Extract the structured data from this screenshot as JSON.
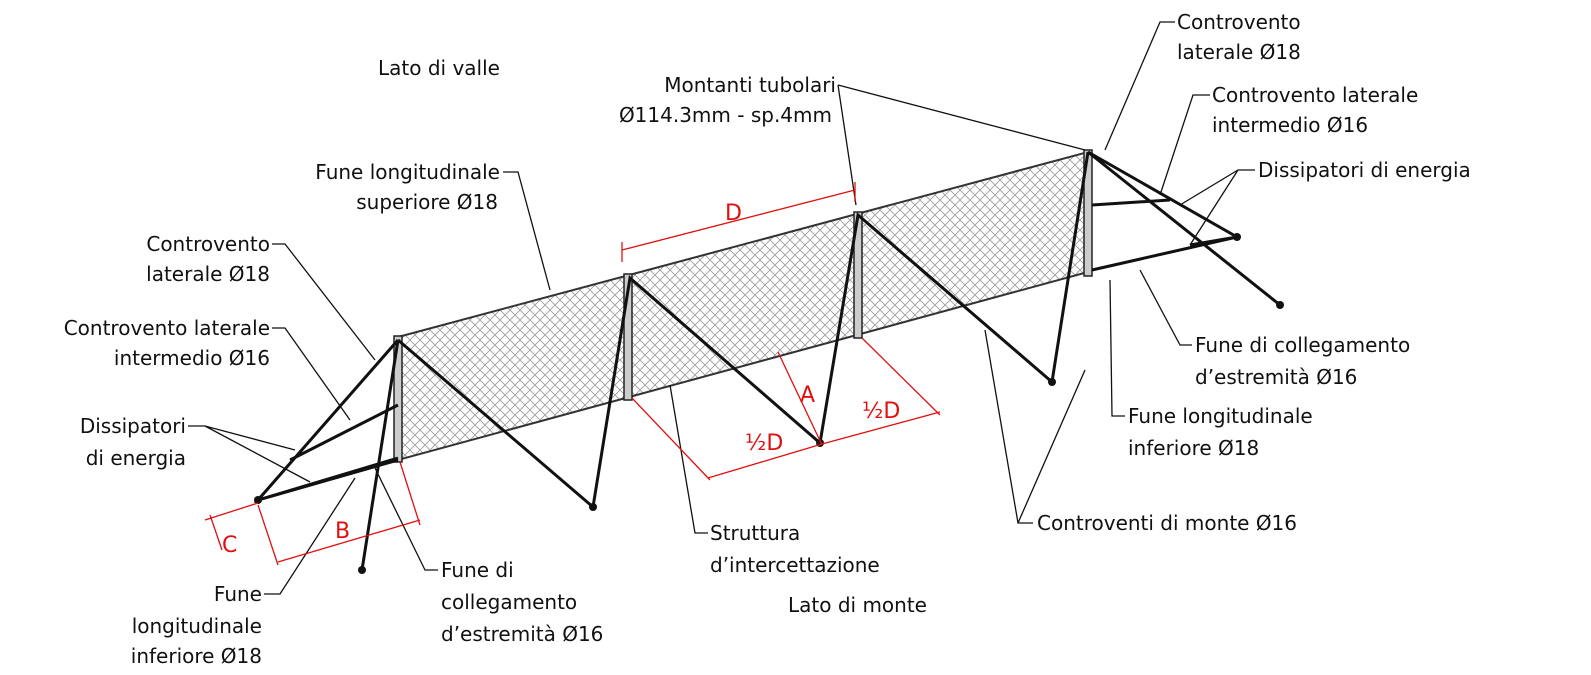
{
  "sides": {
    "valle": "Lato di valle",
    "monte": "Lato di monte"
  },
  "labels": {
    "montanti": [
      "Montanti tubolari",
      "Ø114.3mm - sp.4mm"
    ],
    "controvento_dx": [
      "Controvento",
      "laterale Ø18"
    ],
    "intermedio_dx": [
      "Controvento laterale",
      "intermedio Ø16"
    ],
    "dissipatori_dx": [
      "Dissipatori di energia"
    ],
    "fune_sup": [
      "Fune longitudinale",
      "superiore Ø18"
    ],
    "controvento_sx": [
      "Controvento",
      "laterale Ø18"
    ],
    "intermedio_sx": [
      "Controvento laterale",
      "intermedio Ø16"
    ],
    "dissipatori_sx": [
      "Dissipatori",
      "di energia"
    ],
    "fune_inf_sx": [
      "Fune",
      "longitudinale",
      "inferiore Ø18"
    ],
    "collegamento_sx": [
      "Fune di",
      "collegamento",
      "d’estremità Ø16"
    ],
    "struttura": [
      "Struttura",
      "d’intercettazione"
    ],
    "controventi_monte": [
      "Controventi di monte Ø16"
    ],
    "collegamento_dx": [
      "Fune di collegamento",
      "d’estremità Ø16"
    ],
    "fune_inf_dx": [
      "Fune longitudinale",
      "inferiore Ø18"
    ]
  },
  "dimensions": {
    "D": "D",
    "A": "A",
    "half_1": "½D",
    "half_2": "½D",
    "B": "B",
    "C": "C"
  }
}
